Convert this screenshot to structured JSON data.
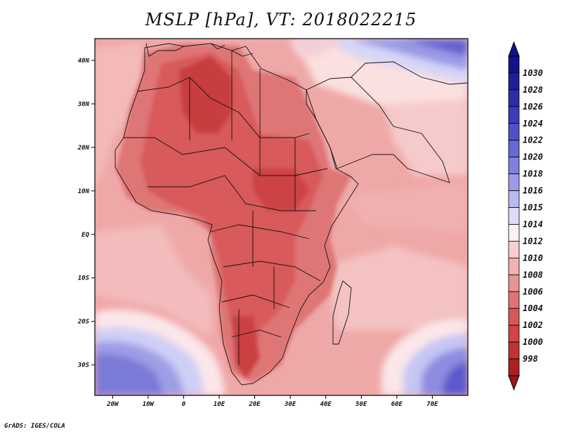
{
  "title": "MSLP [hPa], VT: 2018022215",
  "credit": "GrADS: IGES/COLA",
  "map": {
    "lon_range": [
      -25,
      80
    ],
    "lat_range": [
      -37,
      45
    ],
    "lat_ticks": [
      {
        "value": 40,
        "label": "40N"
      },
      {
        "value": 30,
        "label": "30N"
      },
      {
        "value": 20,
        "label": "20N"
      },
      {
        "value": 10,
        "label": "10N"
      },
      {
        "value": 0,
        "label": "EQ"
      },
      {
        "value": -10,
        "label": "10S"
      },
      {
        "value": -20,
        "label": "20S"
      },
      {
        "value": -30,
        "label": "30S"
      }
    ],
    "lon_ticks": [
      {
        "value": -20,
        "label": "20W"
      },
      {
        "value": -10,
        "label": "10W"
      },
      {
        "value": 0,
        "label": "0"
      },
      {
        "value": 10,
        "label": "10E"
      },
      {
        "value": 20,
        "label": "20E"
      },
      {
        "value": 30,
        "label": "30E"
      },
      {
        "value": 40,
        "label": "40E"
      },
      {
        "value": 50,
        "label": "50E"
      },
      {
        "value": 60,
        "label": "60E"
      },
      {
        "value": 70,
        "label": "70E"
      }
    ]
  },
  "colorbar": {
    "levels": [
      {
        "label": "1030",
        "color": "#1f1f95"
      },
      {
        "label": "1028",
        "color": "#2c2ca8"
      },
      {
        "label": "1026",
        "color": "#3b3bbb"
      },
      {
        "label": "1024",
        "color": "#5050c8"
      },
      {
        "label": "1022",
        "color": "#6868d3"
      },
      {
        "label": "1020",
        "color": "#8080dc"
      },
      {
        "label": "1018",
        "color": "#9c9ce6"
      },
      {
        "label": "1016",
        "color": "#babaf0"
      },
      {
        "label": "1015",
        "color": "#dcdcfa"
      },
      {
        "label": "1014",
        "color": "#fdf1f1"
      },
      {
        "label": "1012",
        "color": "#f7cfcf"
      },
      {
        "label": "1010",
        "color": "#f2b2b2"
      },
      {
        "label": "1008",
        "color": "#e79494"
      },
      {
        "label": "1006",
        "color": "#df7474"
      },
      {
        "label": "1004",
        "color": "#d85858"
      },
      {
        "label": "1002",
        "color": "#cf4444"
      },
      {
        "label": "1000",
        "color": "#c23232"
      },
      {
        "label": "998",
        "color": "#ad2020"
      }
    ],
    "top_color": "#12128a",
    "bottom_color": "#9a1616"
  }
}
